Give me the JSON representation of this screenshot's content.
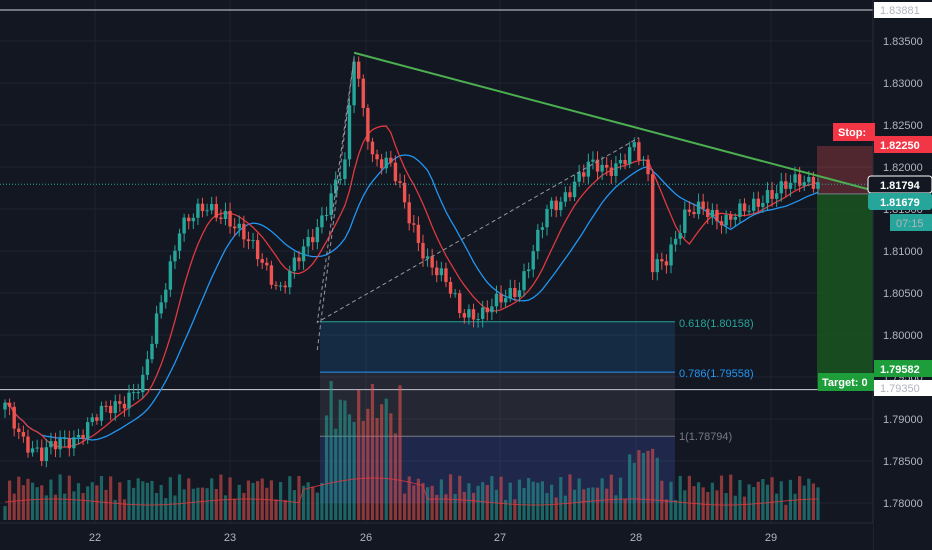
{
  "chart_data": {
    "type": "candlestick",
    "x_ticks": [
      "22",
      "23",
      "26",
      "27",
      "28",
      "29"
    ],
    "y_ticks": [
      "1.83500",
      "1.83000",
      "1.82500",
      "1.82000",
      "1.81500",
      "1.81000",
      "1.80500",
      "1.80000",
      "1.79500",
      "1.79000",
      "1.78500",
      "1.78000"
    ],
    "ylim": [
      1.7775,
      1.83881
    ],
    "top_level": "1.83881",
    "current_price": "1.81794",
    "entry_price": "1.81679",
    "countdown": "07:15",
    "stop_label": "Stop:",
    "stop_price": "1.82250",
    "target_label": "Target: 0",
    "target_price": "1.79582",
    "support_level": "1.79350",
    "fib_levels": [
      {
        "label": "0.618(1.80158)",
        "value": 1.80158,
        "color": "#26a69a"
      },
      {
        "label": "0.786(1.79558)",
        "value": 1.79558,
        "color": "#2196f3"
      },
      {
        "label": "1(1.78794)",
        "value": 1.78794,
        "color": "#787b86"
      }
    ],
    "anchors": [
      {
        "i": 0,
        "v": 1.7915
      },
      {
        "i": 4,
        "v": 1.7878
      },
      {
        "i": 8,
        "v": 1.7855
      },
      {
        "i": 12,
        "v": 1.7872
      },
      {
        "i": 16,
        "v": 1.7882
      },
      {
        "i": 22,
        "v": 1.791
      },
      {
        "i": 26,
        "v": 1.7925
      },
      {
        "i": 30,
        "v": 1.7942
      },
      {
        "i": 34,
        "v": 1.804
      },
      {
        "i": 38,
        "v": 1.813
      },
      {
        "i": 44,
        "v": 1.815
      },
      {
        "i": 48,
        "v": 1.8145
      },
      {
        "i": 52,
        "v": 1.8115
      },
      {
        "i": 56,
        "v": 1.8088
      },
      {
        "i": 60,
        "v": 1.8055
      },
      {
        "i": 64,
        "v": 1.809
      },
      {
        "i": 68,
        "v": 1.813
      },
      {
        "i": 72,
        "v": 1.818
      },
      {
        "i": 74,
        "v": 1.82
      },
      {
        "i": 76,
        "v": 1.833
      },
      {
        "i": 78,
        "v": 1.827
      },
      {
        "i": 80,
        "v": 1.8215
      },
      {
        "i": 84,
        "v": 1.82
      },
      {
        "i": 88,
        "v": 1.814
      },
      {
        "i": 92,
        "v": 1.809
      },
      {
        "i": 96,
        "v": 1.806
      },
      {
        "i": 99,
        "v": 1.803
      },
      {
        "i": 104,
        "v": 1.8025
      },
      {
        "i": 108,
        "v": 1.804
      },
      {
        "i": 112,
        "v": 1.806
      },
      {
        "i": 115,
        "v": 1.81
      },
      {
        "i": 118,
        "v": 1.8145
      },
      {
        "i": 121,
        "v": 1.816
      },
      {
        "i": 124,
        "v": 1.8185
      },
      {
        "i": 127,
        "v": 1.82
      },
      {
        "i": 131,
        "v": 1.8195
      },
      {
        "i": 134,
        "v": 1.821
      },
      {
        "i": 137,
        "v": 1.8225
      },
      {
        "i": 140,
        "v": 1.8185
      },
      {
        "i": 141,
        "v": 1.808
      },
      {
        "i": 144,
        "v": 1.8095
      },
      {
        "i": 148,
        "v": 1.814
      },
      {
        "i": 152,
        "v": 1.815
      },
      {
        "i": 157,
        "v": 1.8138
      },
      {
        "i": 162,
        "v": 1.8148
      },
      {
        "i": 166,
        "v": 1.817
      }
    ],
    "trendline": {
      "from": {
        "i": 76,
        "v": 1.8336
      },
      "to": {
        "i": 178,
        "v": 1.8178
      }
    },
    "dashed_line": {
      "from": {
        "i": 68,
        "v": 1.7982
      },
      "via": {
        "i": 76,
        "v": 1.833
      },
      "path": [
        {
          "i": 68,
          "v": 1.7982
        },
        {
          "i": 76,
          "v": 1.833
        },
        {
          "i": 68,
          "v": 1.8015
        },
        {
          "i": 138,
          "v": 1.8235
        }
      ]
    },
    "colors": {
      "bg": "#131722",
      "grid": "#1f2330",
      "up": "#26a69a",
      "down": "#ef5350",
      "ma_red": "#e0393e",
      "ma_blue": "#2196f3",
      "trend": "#4caf50",
      "stop_tag": "#f23645",
      "target_tag": "#1e9e3a",
      "axis_text": "#b2b5be"
    }
  }
}
